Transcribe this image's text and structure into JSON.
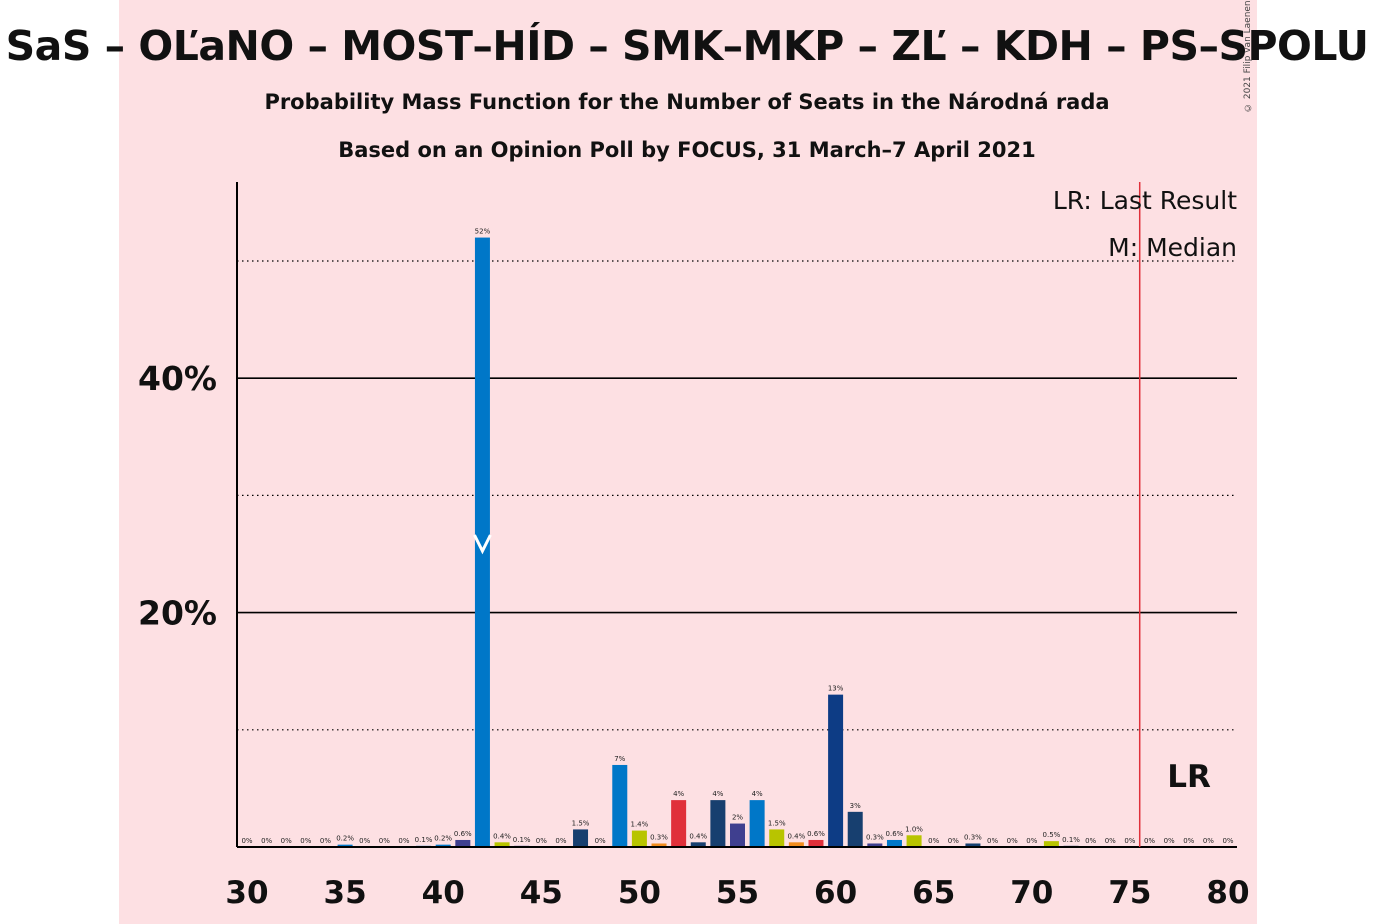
{
  "title": "SaS – OĽaNO – MOST–HÍD – SMK–MKP – ZĽ – KDH – PS–SPOLU",
  "subtitle1": "Probability Mass Function for the Number of Seats in the Národná rada",
  "subtitle2": "Based on an Opinion Poll by FOCUS, 31 March–7 April 2021",
  "copyright": "© 2021 Filip van Laenen",
  "legend": {
    "last_result": "LR: Last Result",
    "median": "M: Median"
  },
  "lr_marker": "LR",
  "colors": {
    "background_band": "#fde0e3",
    "last_result_line": "#e0303a",
    "grid": "#000000"
  },
  "chart_data": {
    "type": "bar",
    "title": "SaS – OĽaNO – MOST–HÍD – SMK–MKP – ZĽ – KDH – PS–SPOLU",
    "xlabel": "",
    "ylabel": "",
    "xlim": [
      30,
      80
    ],
    "ylim": [
      0,
      55
    ],
    "x_ticks": [
      30,
      35,
      40,
      45,
      50,
      55,
      60,
      65,
      70,
      75,
      80
    ],
    "y_ticks": [
      {
        "value": 20,
        "label": "20%"
      },
      {
        "value": 40,
        "label": "40%"
      }
    ],
    "dotted_gridlines": [
      10,
      30,
      50
    ],
    "median": 42,
    "last_result": 75.5,
    "grid": true,
    "legend_position": "top-right",
    "x": [
      30,
      31,
      32,
      33,
      34,
      35,
      36,
      37,
      38,
      39,
      40,
      41,
      42,
      43,
      44,
      45,
      46,
      47,
      48,
      49,
      50,
      51,
      52,
      53,
      54,
      55,
      56,
      57,
      58,
      59,
      60,
      61,
      62,
      63,
      64,
      65,
      66,
      67,
      68,
      69,
      70,
      71,
      72,
      73,
      74,
      75,
      76,
      77,
      78,
      79,
      80
    ],
    "values": [
      0,
      0,
      0,
      0,
      0,
      0.2,
      0,
      0,
      0,
      0.1,
      0.2,
      0.6,
      52,
      0.4,
      0.1,
      0,
      0,
      1.5,
      0,
      7,
      1.4,
      0.3,
      4,
      0.4,
      4,
      2,
      4,
      1.5,
      0.4,
      0.6,
      13,
      3,
      0.3,
      0.6,
      1.0,
      0,
      0,
      0.3,
      0,
      0,
      0,
      0.5,
      0.1,
      0,
      0,
      0,
      0,
      0,
      0,
      0,
      0
    ],
    "labels": [
      "0%",
      "0%",
      "0%",
      "0%",
      "0%",
      "0.2%",
      "0%",
      "0%",
      "0%",
      "0.1%",
      "0.2%",
      "0.6%",
      "52%",
      "0.4%",
      "0.1%",
      "0%",
      "0%",
      "1.5%",
      "0%",
      "7%",
      "1.4%",
      "0.3%",
      "4%",
      "0.4%",
      "4%",
      "2%",
      "4%",
      "1.5%",
      "0.4%",
      "0.6%",
      "13%",
      "3%",
      "0.3%",
      "0.6%",
      "1.0%",
      "0%",
      "0%",
      "0.3%",
      "0%",
      "0%",
      "0%",
      "0.5%",
      "0.1%",
      "0%",
      "0%",
      "0%",
      "0%",
      "0%",
      "0%",
      "0%",
      "0%"
    ],
    "bar_colors": [
      "#0077c8",
      "#0077c8",
      "#0077c8",
      "#0077c8",
      "#0077c8",
      "#0077c8",
      "#0077c8",
      "#0077c8",
      "#0077c8",
      "#0077c8",
      "#0077c8",
      "#3f3f8f",
      "#0077c8",
      "#b8c400",
      "#3f3f8f",
      "#0077c8",
      "#0077c8",
      "#173f6f",
      "#0077c8",
      "#0077c8",
      "#b8c400",
      "#f28c1e",
      "#e0303a",
      "#173f6f",
      "#173f6f",
      "#3f3f8f",
      "#0077c8",
      "#b8c400",
      "#f28c1e",
      "#e0303a",
      "#0d3c85",
      "#173f6f",
      "#3f3f8f",
      "#0077c8",
      "#b8c400",
      "#0077c8",
      "#0077c8",
      "#173f6f",
      "#0077c8",
      "#0077c8",
      "#0077c8",
      "#b8c400",
      "#173f6f",
      "#0077c8",
      "#0077c8",
      "#0077c8",
      "#0077c8",
      "#0077c8",
      "#0077c8",
      "#0077c8",
      "#0077c8"
    ]
  }
}
